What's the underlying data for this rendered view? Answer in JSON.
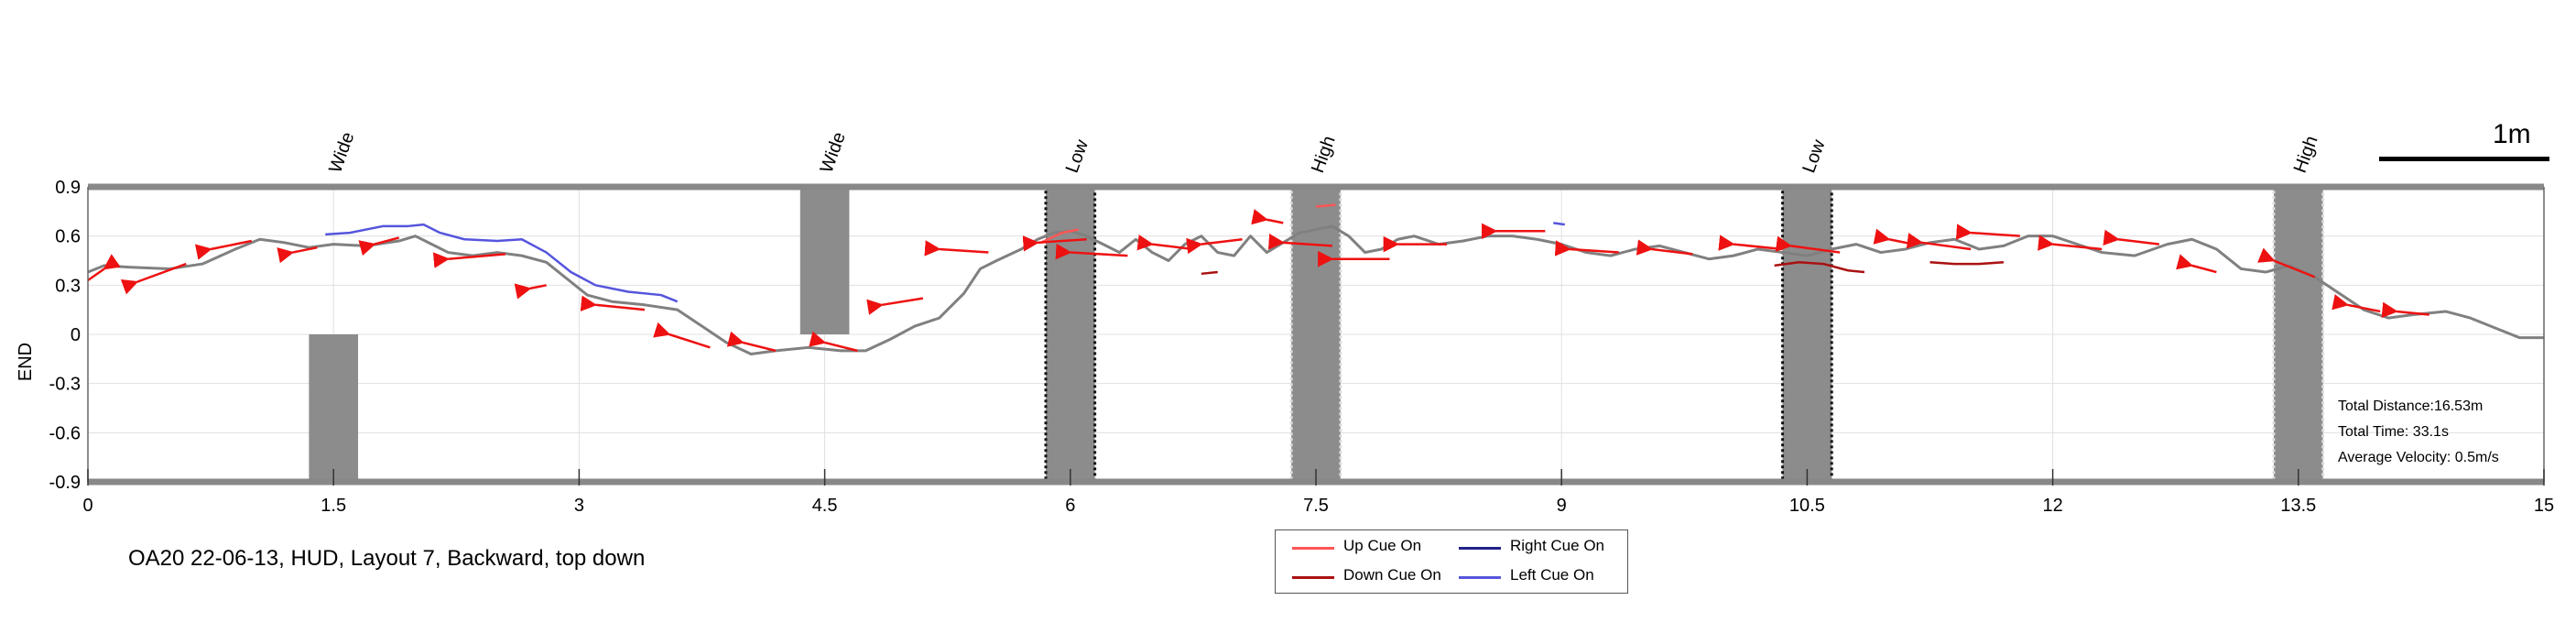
{
  "chart_data": {
    "type": "line",
    "title": "",
    "ylabel": "END",
    "xlabel": "",
    "xlim": [
      0,
      15
    ],
    "ylim": [
      -0.9,
      0.9
    ],
    "x_ticks": [
      0,
      1.5,
      3,
      4.5,
      6,
      7.5,
      9,
      10.5,
      12,
      13.5,
      15
    ],
    "x_tick_labels": [
      "0",
      "1.5",
      "3",
      "4.5",
      "6",
      "7.5",
      "9",
      "10.5",
      "12",
      "13.5",
      "15"
    ],
    "y_ticks": [
      0.9,
      0.6,
      0.3,
      0,
      -0.3,
      -0.6,
      -0.9
    ],
    "y_tick_labels": [
      "0.9",
      "0.6",
      "0.3",
      "0",
      "-0.3",
      "-0.6",
      "-0.9"
    ],
    "grid": true,
    "zones": [
      {
        "label": "Wide",
        "x_start": 1.35,
        "x_end": 1.65,
        "y_start": -0.9,
        "y_end": 0,
        "border": "none"
      },
      {
        "label": "Wide",
        "x_start": 4.35,
        "x_end": 4.65,
        "y_start": 0,
        "y_end": 0.9,
        "border": "none"
      },
      {
        "label": "Low",
        "x_start": 5.85,
        "x_end": 6.15,
        "y_start": -0.9,
        "y_end": 0.9,
        "border": "dark"
      },
      {
        "label": "High",
        "x_start": 7.35,
        "x_end": 7.65,
        "y_start": -0.9,
        "y_end": 0.9,
        "border": "light"
      },
      {
        "label": "Low",
        "x_start": 10.35,
        "x_end": 10.65,
        "y_start": -0.9,
        "y_end": 0.9,
        "border": "dark"
      },
      {
        "label": "High",
        "x_start": 13.35,
        "x_end": 13.65,
        "y_start": -0.9,
        "y_end": 0.9,
        "border": "light"
      }
    ],
    "series": [
      {
        "name": "Path",
        "color": "#808080",
        "x": [
          0,
          0.1,
          0.25,
          0.5,
          0.7,
          0.9,
          1.05,
          1.2,
          1.35,
          1.5,
          1.7,
          1.9,
          2.0,
          2.1,
          2.2,
          2.35,
          2.5,
          2.65,
          2.8,
          2.95,
          3.05,
          3.2,
          3.4,
          3.6,
          3.75,
          3.9,
          4.05,
          4.2,
          4.4,
          4.6,
          4.75,
          4.9,
          5.05,
          5.2,
          5.35,
          5.45,
          5.55,
          5.7,
          5.8,
          5.9,
          6.0,
          6.1,
          6.2,
          6.3,
          6.4,
          6.5,
          6.6,
          6.7,
          6.8,
          6.9,
          7.0,
          7.1,
          7.2,
          7.3,
          7.4,
          7.5,
          7.6,
          7.7,
          7.8,
          7.9,
          8.0,
          8.1,
          8.25,
          8.4,
          8.55,
          8.7,
          8.85,
          9.0,
          9.15,
          9.3,
          9.45,
          9.6,
          9.75,
          9.9,
          10.05,
          10.2,
          10.35,
          10.5,
          10.65,
          10.8,
          10.95,
          11.1,
          11.25,
          11.4,
          11.55,
          11.7,
          11.85,
          12.0,
          12.15,
          12.3,
          12.5,
          12.7,
          12.85,
          13.0,
          13.15,
          13.3,
          13.45,
          13.6,
          13.75,
          13.9,
          14.05,
          14.2,
          14.4,
          14.55,
          14.7,
          14.85,
          15.0
        ],
        "y": [
          0.38,
          0.42,
          0.41,
          0.4,
          0.43,
          0.52,
          0.58,
          0.56,
          0.53,
          0.55,
          0.54,
          0.57,
          0.6,
          0.55,
          0.5,
          0.48,
          0.5,
          0.48,
          0.44,
          0.32,
          0.24,
          0.2,
          0.18,
          0.15,
          0.05,
          -0.05,
          -0.12,
          -0.1,
          -0.08,
          -0.1,
          -0.1,
          -0.03,
          0.05,
          0.1,
          0.25,
          0.4,
          0.45,
          0.52,
          0.58,
          0.62,
          0.63,
          0.6,
          0.55,
          0.5,
          0.58,
          0.5,
          0.45,
          0.55,
          0.6,
          0.5,
          0.48,
          0.6,
          0.5,
          0.56,
          0.62,
          0.64,
          0.66,
          0.6,
          0.5,
          0.52,
          0.58,
          0.6,
          0.55,
          0.57,
          0.6,
          0.6,
          0.58,
          0.55,
          0.5,
          0.48,
          0.52,
          0.54,
          0.5,
          0.46,
          0.48,
          0.52,
          0.5,
          0.48,
          0.52,
          0.55,
          0.5,
          0.52,
          0.56,
          0.58,
          0.52,
          0.54,
          0.6,
          0.6,
          0.55,
          0.5,
          0.48,
          0.55,
          0.58,
          0.52,
          0.4,
          0.38,
          0.42,
          0.35,
          0.25,
          0.15,
          0.1,
          0.12,
          0.14,
          0.1,
          0.04,
          -0.02,
          -0.02
        ]
      },
      {
        "name": "Left Cue On",
        "color": "#5555dd",
        "x": [
          1.45,
          1.6,
          1.8,
          1.95,
          2.05,
          2.15,
          2.3,
          2.5,
          2.65,
          2.8,
          2.95,
          3.1,
          3.3,
          3.5,
          3.6
        ],
        "y": [
          0.61,
          0.62,
          0.66,
          0.66,
          0.67,
          0.62,
          0.58,
          0.57,
          0.58,
          0.5,
          0.38,
          0.3,
          0.26,
          0.24,
          0.2
        ]
      },
      {
        "name": "Left Cue On",
        "color": "#5555dd",
        "x": [
          8.95,
          9.02
        ],
        "y": [
          0.68,
          0.67
        ]
      },
      {
        "name": "Down Cue On",
        "color": "#aa1111",
        "x": [
          6.8,
          6.9
        ],
        "y": [
          0.37,
          0.38
        ]
      },
      {
        "name": "Down Cue On",
        "color": "#aa1111",
        "x": [
          10.3,
          10.45,
          10.6,
          10.75,
          10.85
        ],
        "y": [
          0.42,
          0.44,
          0.43,
          0.39,
          0.38
        ]
      },
      {
        "name": "Down Cue On",
        "color": "#aa1111",
        "x": [
          11.25,
          11.4,
          11.55,
          11.7
        ],
        "y": [
          0.44,
          0.43,
          0.43,
          0.44
        ]
      },
      {
        "name": "Up Cue On",
        "color": "#ff5555",
        "x": [
          5.82,
          5.95,
          6.05
        ],
        "y": [
          0.56,
          0.62,
          0.64
        ]
      },
      {
        "name": "Up Cue On",
        "color": "#ff5555",
        "x": [
          7.5,
          7.62
        ],
        "y": [
          0.78,
          0.79
        ]
      }
    ],
    "arrows": [
      [
        0.0,
        0.33,
        0.1,
        0.4
      ],
      [
        0.6,
        0.43,
        0.3,
        0.32
      ],
      [
        1.0,
        0.57,
        0.75,
        0.52
      ],
      [
        1.4,
        0.53,
        1.25,
        0.5
      ],
      [
        1.9,
        0.59,
        1.75,
        0.55
      ],
      [
        2.55,
        0.49,
        2.2,
        0.46
      ],
      [
        2.8,
        0.3,
        2.7,
        0.28
      ],
      [
        3.4,
        0.15,
        3.1,
        0.18
      ],
      [
        3.8,
        -0.08,
        3.55,
        0.0
      ],
      [
        4.2,
        -0.1,
        4.0,
        -0.05
      ],
      [
        4.7,
        -0.1,
        4.5,
        -0.05
      ],
      [
        5.1,
        0.22,
        4.85,
        0.18
      ],
      [
        5.5,
        0.5,
        5.2,
        0.52
      ],
      [
        6.1,
        0.58,
        5.8,
        0.56
      ],
      [
        6.35,
        0.48,
        6.0,
        0.5
      ],
      [
        6.75,
        0.52,
        6.5,
        0.55
      ],
      [
        7.05,
        0.58,
        6.8,
        0.55
      ],
      [
        7.3,
        0.68,
        7.2,
        0.7
      ],
      [
        7.6,
        0.54,
        7.3,
        0.56
      ],
      [
        7.95,
        0.46,
        7.6,
        0.46
      ],
      [
        8.3,
        0.55,
        8.0,
        0.55
      ],
      [
        8.9,
        0.63,
        8.6,
        0.63
      ],
      [
        9.35,
        0.5,
        9.05,
        0.52
      ],
      [
        9.8,
        0.49,
        9.55,
        0.52
      ],
      [
        10.35,
        0.52,
        10.05,
        0.55
      ],
      [
        10.7,
        0.5,
        10.4,
        0.54
      ],
      [
        11.15,
        0.55,
        11.0,
        0.58
      ],
      [
        11.5,
        0.52,
        11.2,
        0.56
      ],
      [
        11.8,
        0.6,
        11.5,
        0.62
      ],
      [
        12.3,
        0.52,
        12.0,
        0.55
      ],
      [
        12.65,
        0.55,
        12.4,
        0.58
      ],
      [
        13.0,
        0.38,
        12.85,
        0.42
      ],
      [
        13.6,
        0.35,
        13.35,
        0.45
      ],
      [
        14.0,
        0.14,
        13.8,
        0.18
      ],
      [
        14.3,
        0.12,
        14.1,
        0.14
      ]
    ],
    "arrow_color": "#ee1111",
    "legend": [
      {
        "label": "Up Cue On",
        "color": "#ff5555"
      },
      {
        "label": "Right Cue On",
        "color": "#222288"
      },
      {
        "label": "Down Cue On",
        "color": "#aa1111"
      },
      {
        "label": "Left Cue On",
        "color": "#5555dd"
      }
    ],
    "legend_position": "bottom-center"
  },
  "stats": {
    "distance": "Total Distance:16.53m",
    "time": "Total Time: 33.1s",
    "velocity": "Average Velocity: 0.5m/s"
  },
  "scale": {
    "label": "1m"
  },
  "caption": "OA20 22-06-13, HUD, Layout 7, Backward, top down"
}
